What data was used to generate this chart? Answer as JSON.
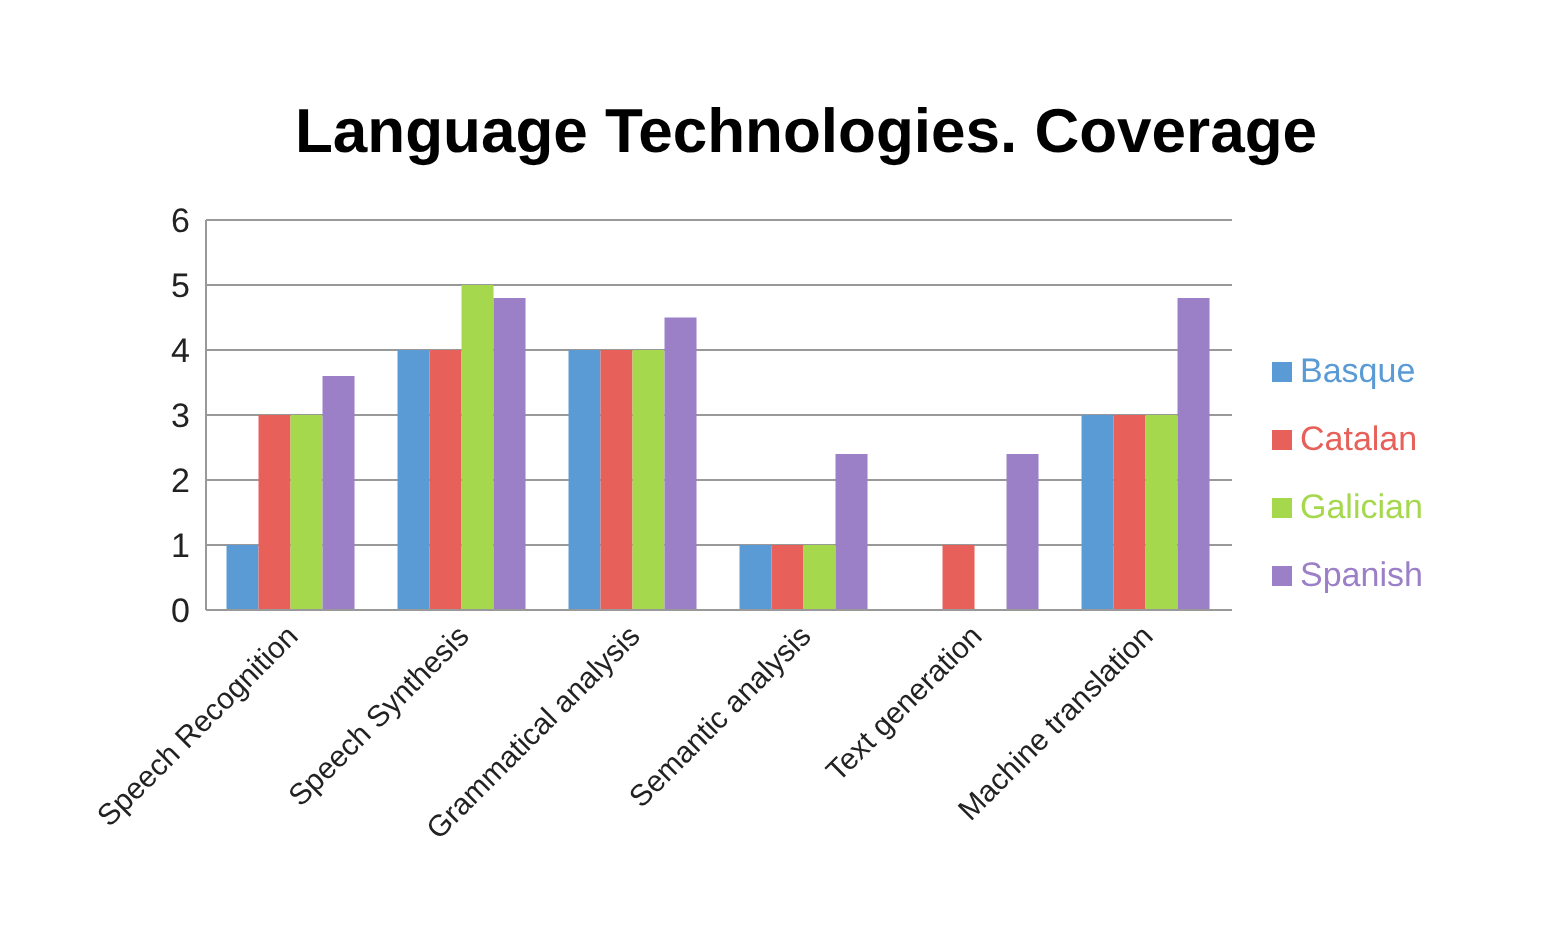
{
  "chart_data": {
    "type": "bar",
    "title": "Language Technologies. Coverage",
    "categories": [
      "Speech Recognition",
      "Speech Synthesis",
      "Grammatical analysis",
      "Semantic analysis",
      "Text generation",
      "Machine translation"
    ],
    "series": [
      {
        "name": "Basque",
        "color": "#5b9bd5",
        "values": [
          1,
          4,
          4,
          1,
          0,
          3
        ]
      },
      {
        "name": "Catalan",
        "color": "#e8605a",
        "values": [
          3,
          4,
          4,
          1,
          1,
          3
        ]
      },
      {
        "name": "Galician",
        "color": "#a6d84e",
        "values": [
          3,
          5,
          4,
          1,
          0,
          3
        ]
      },
      {
        "name": "Spanish",
        "color": "#9b7fc7",
        "values": [
          3.6,
          4.8,
          4.5,
          2.4,
          2.4,
          4.8
        ]
      }
    ],
    "ylim": [
      0,
      6
    ],
    "yticks": [
      0,
      1,
      2,
      3,
      4,
      5,
      6
    ],
    "grid": "y",
    "legend": "right"
  }
}
